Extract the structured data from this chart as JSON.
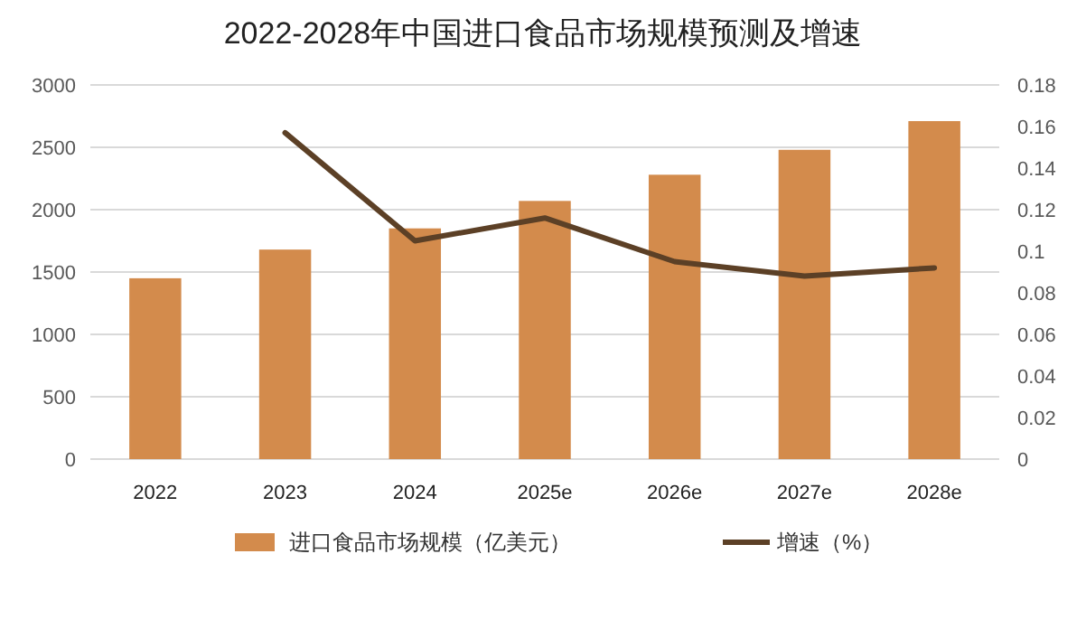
{
  "chart_data": {
    "type": "bar",
    "title": "2022-2028年中国进口食品市场规模预测及增速",
    "categories": [
      "2022",
      "2023",
      "2024",
      "2025e",
      "2026e",
      "2027e",
      "2028e"
    ],
    "series": [
      {
        "name": "进口食品市场规模（亿美元）",
        "color": "#d38b4c",
        "values": [
          1450,
          1680,
          1850,
          2070,
          2280,
          2480,
          2710
        ]
      },
      {
        "name": "增速（%）",
        "type": "line",
        "axis": "y2",
        "color": "#5c4026",
        "values": [
          null,
          0.157,
          0.105,
          0.116,
          0.095,
          0.088,
          0.092
        ]
      }
    ],
    "ylim": [
      0,
      3000
    ],
    "yticks": [
      0,
      500,
      1000,
      1500,
      2000,
      2500,
      3000
    ],
    "y2lim": [
      0,
      0.18
    ],
    "y2ticks": [
      0,
      0.02,
      0.04,
      0.06,
      0.08,
      0.1,
      0.12,
      0.14,
      0.16,
      0.18
    ],
    "grid": "y",
    "legend": "bottom",
    "marker": "none"
  }
}
